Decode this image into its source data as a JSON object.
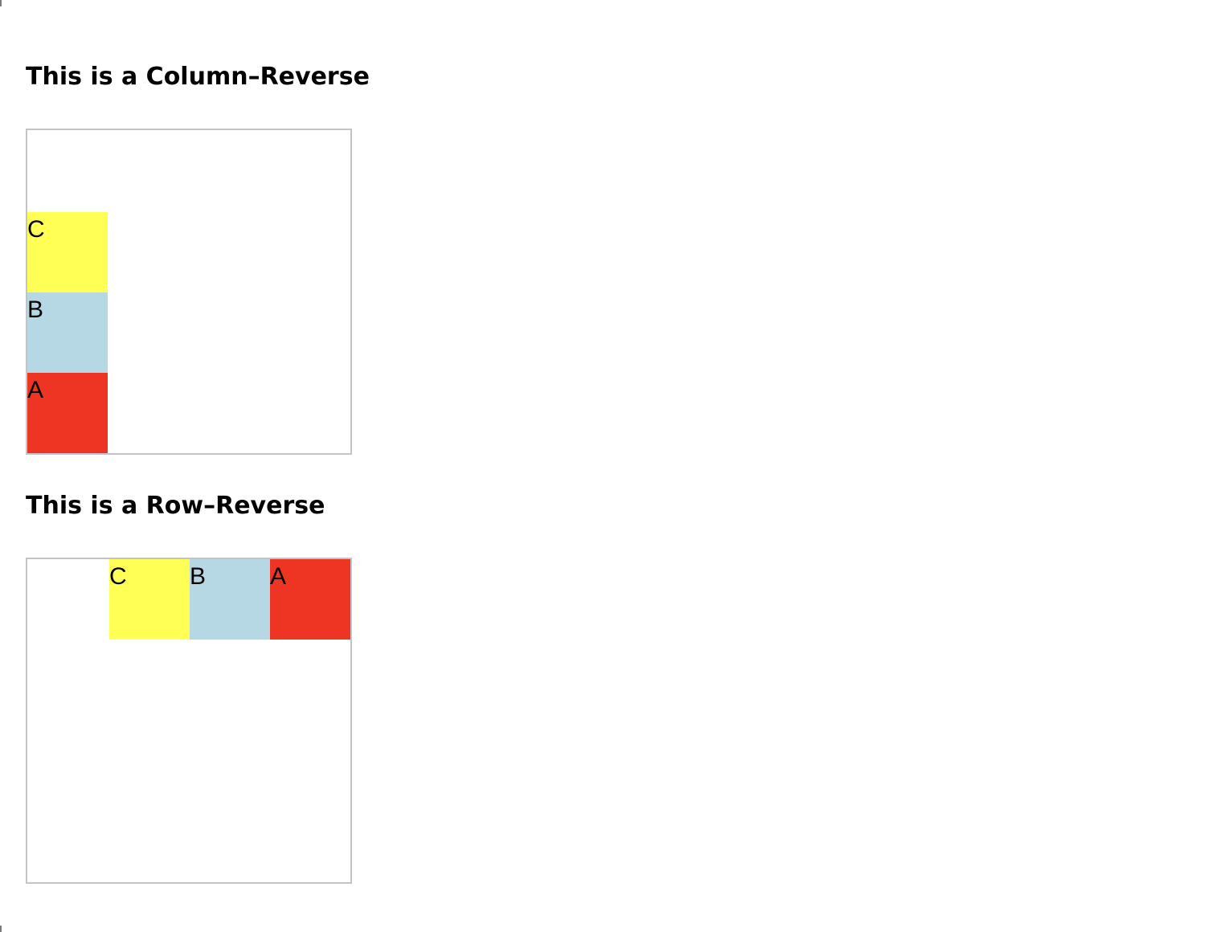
{
  "sections": {
    "column_reverse": {
      "title": "This is a Column–Reverse",
      "items": [
        {
          "label": "A",
          "color": "#ee3524"
        },
        {
          "label": "B",
          "color": "#b6d8e5"
        },
        {
          "label": "C",
          "color": "#ffff55"
        }
      ]
    },
    "row_reverse": {
      "title": "This is a Row–Reverse",
      "items": [
        {
          "label": "A",
          "color": "#ee3524"
        },
        {
          "label": "B",
          "color": "#b6d8e5"
        },
        {
          "label": "C",
          "color": "#ffff55"
        }
      ]
    }
  },
  "colors": {
    "border": "#c4c4c4",
    "background": "#ffffff",
    "text": "#000000"
  }
}
